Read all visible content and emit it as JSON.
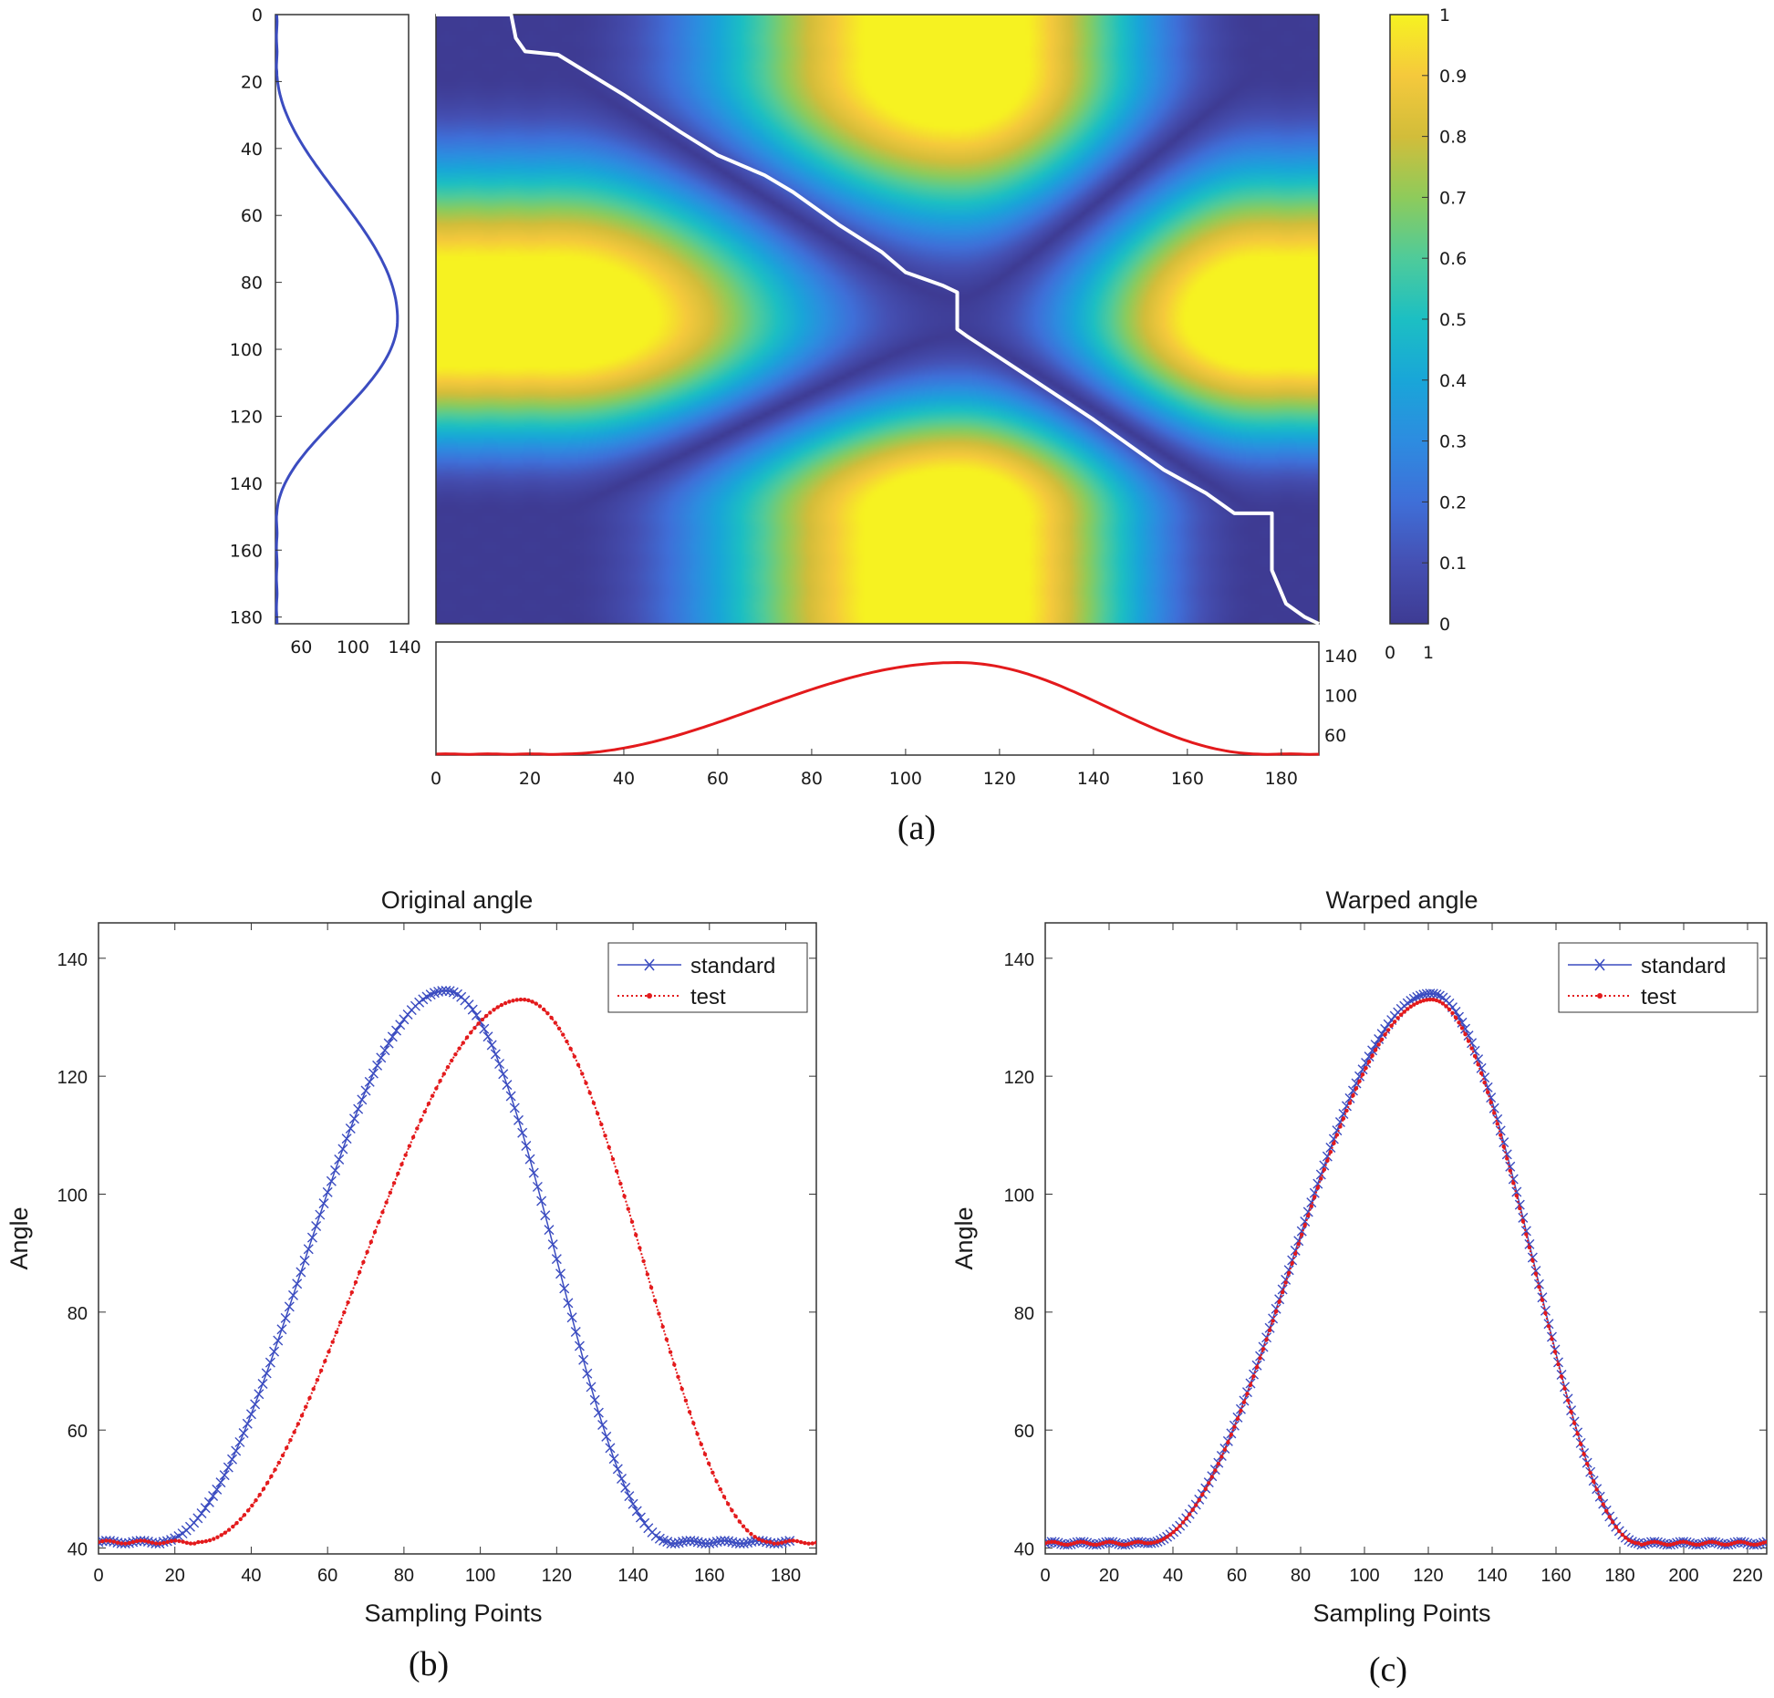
{
  "colors": {
    "standard": "#3b4cc0",
    "test": "#e31a1c",
    "path": "#ffffff",
    "frame": "#333333"
  },
  "chart_data": [
    {
      "id": "a",
      "type": "heatmap",
      "caption": "(a)",
      "title": "",
      "description_free": true,
      "x": {
        "range": [
          0,
          188
        ],
        "ticks": [
          0,
          20,
          40,
          60,
          80,
          100,
          120,
          140,
          160,
          180
        ]
      },
      "y": {
        "range": [
          0,
          182
        ],
        "ticks": [
          0,
          20,
          40,
          60,
          80,
          100,
          120,
          140,
          160,
          180
        ]
      },
      "colorbar": {
        "range": [
          0,
          1
        ],
        "ticks": [
          0,
          0.1,
          0.2,
          0.3,
          0.4,
          0.5,
          0.6,
          0.7,
          0.8,
          0.9,
          1
        ],
        "tick_labels": [
          "0",
          "0.1",
          "0.2",
          "0.3",
          "0.4",
          "0.5",
          "0.6",
          "0.7",
          "0.8",
          "0.9",
          "1"
        ],
        "bottom_labels": [
          "0",
          "1"
        ]
      },
      "left_profile": {
        "series": "standard",
        "value_range": [
          40,
          140
        ],
        "tick_labels": [
          "60",
          "100",
          "140"
        ],
        "tick_values": [
          60,
          100,
          140
        ]
      },
      "bottom_profile": {
        "series": "test",
        "value_range": [
          40,
          140
        ],
        "tick_labels": [
          "140",
          "100",
          "60"
        ],
        "tick_values": [
          140,
          100,
          60
        ]
      },
      "warp_path": [
        [
          0,
          0
        ],
        [
          16,
          0
        ],
        [
          17,
          7
        ],
        [
          19,
          11
        ],
        [
          26,
          12
        ],
        [
          40,
          24
        ],
        [
          52,
          35
        ],
        [
          60,
          42
        ],
        [
          70,
          48
        ],
        [
          76,
          53
        ],
        [
          86,
          63
        ],
        [
          95,
          71
        ],
        [
          100,
          77
        ],
        [
          108,
          81
        ],
        [
          111,
          83
        ],
        [
          111,
          94
        ],
        [
          113,
          96
        ],
        [
          126,
          108
        ],
        [
          140,
          121
        ],
        [
          155,
          136
        ],
        [
          164,
          143
        ],
        [
          167,
          146
        ],
        [
          170,
          149
        ],
        [
          178,
          149
        ],
        [
          178,
          166
        ],
        [
          181,
          176
        ],
        [
          185,
          180
        ],
        [
          188,
          182
        ]
      ]
    },
    {
      "id": "b",
      "type": "line",
      "caption": "(b)",
      "title": "Original angle",
      "xlabel": "Sampling Points",
      "ylabel": "Angle",
      "xlim": [
        0,
        188
      ],
      "ylim": [
        39,
        146
      ],
      "xticks": [
        0,
        20,
        40,
        60,
        80,
        100,
        120,
        140,
        160,
        180
      ],
      "yticks": [
        40,
        60,
        80,
        100,
        120,
        140
      ],
      "legend": [
        "standard",
        "test"
      ],
      "legend_position": "top-right",
      "series": [
        {
          "name": "standard",
          "marker": "x",
          "style": "solid",
          "n_points": 182,
          "baseline": 41,
          "peak": 134.5,
          "peak_x": 91,
          "rise_start": 16,
          "fall_end": 150,
          "end_x": 181
        },
        {
          "name": "test",
          "marker": "dot",
          "style": "dotted",
          "n_points": 188,
          "baseline": 41,
          "peak": 133,
          "peak_x": 111,
          "rise_start": 26,
          "fall_end": 176,
          "end_x": 188
        }
      ]
    },
    {
      "id": "c",
      "type": "line",
      "caption": "(c)",
      "title": "Warped angle",
      "xlabel": "Sampling Points",
      "ylabel": "Angle",
      "xlim": [
        0,
        226
      ],
      "ylim": [
        39,
        146
      ],
      "xticks": [
        0,
        20,
        40,
        60,
        80,
        100,
        120,
        140,
        160,
        180,
        200,
        220
      ],
      "yticks": [
        40,
        60,
        80,
        100,
        120,
        140
      ],
      "legend": [
        "standard",
        "test"
      ],
      "legend_position": "top-right",
      "series": [
        {
          "name": "standard",
          "marker": "x",
          "style": "solid",
          "n_points": 226,
          "baseline": 40.8,
          "peak": 134,
          "peak_x": 121,
          "rise_start": 32,
          "fall_end": 186,
          "end_x": 226
        },
        {
          "name": "test",
          "marker": "dot",
          "style": "dotted",
          "n_points": 226,
          "baseline": 40.8,
          "peak": 133,
          "peak_x": 121,
          "rise_start": 32,
          "fall_end": 186,
          "end_x": 226
        }
      ]
    }
  ]
}
